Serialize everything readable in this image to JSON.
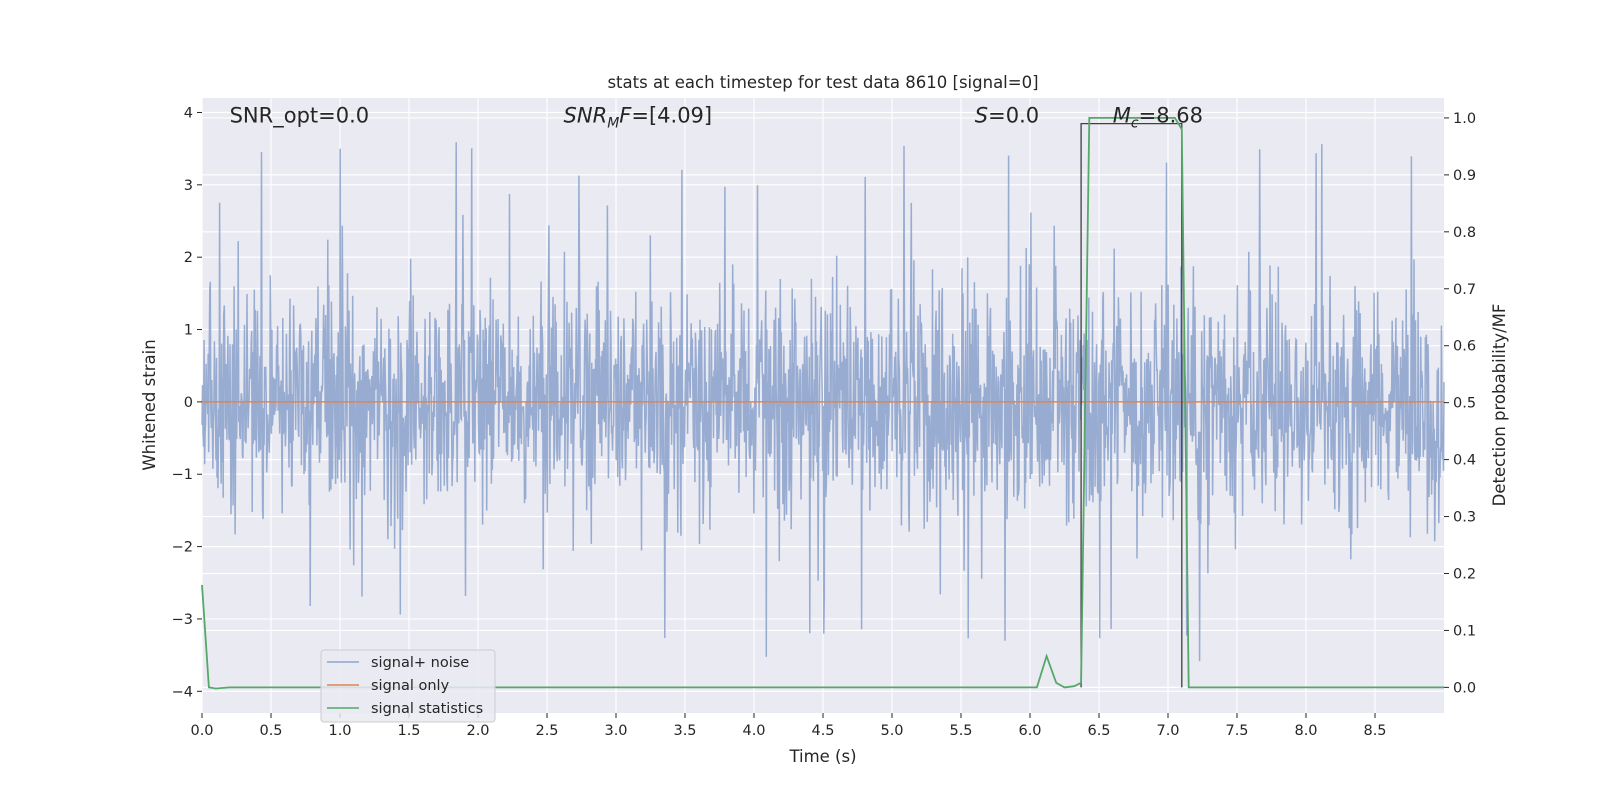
{
  "chart_data": {
    "type": "line",
    "title": "stats at each timestep for test data 8610 [signal=0]",
    "xlabel": "Time (s)",
    "ylabel_left": "Whitened strain",
    "ylabel_right": "Detection probability/MF",
    "xlim": [
      0.0,
      9.0
    ],
    "ylim_left": [
      -4.3,
      4.2
    ],
    "ylim_right": [
      -0.045,
      1.035
    ],
    "x_ticks": [
      "0.0",
      "0.5",
      "1.0",
      "1.5",
      "2.0",
      "2.5",
      "3.0",
      "3.5",
      "4.0",
      "4.5",
      "5.0",
      "5.5",
      "6.0",
      "6.5",
      "7.0",
      "7.5",
      "8.0",
      "8.5"
    ],
    "y_left_ticks": [
      "−4",
      "−3",
      "−2",
      "−1",
      "0",
      "1",
      "2",
      "3",
      "4"
    ],
    "y_right_ticks": [
      "0.0",
      "0.1",
      "0.2",
      "0.3",
      "0.4",
      "0.5",
      "0.6",
      "0.7",
      "0.8",
      "0.9",
      "1.0"
    ],
    "grid": true,
    "legend_position": "lower-left",
    "series": [
      {
        "name": "signal+ noise",
        "color": "#8fa5cd",
        "axis": "left",
        "description_values": "noise strain fluctuating roughly between -3.5 and 3.85, dense band between -1.5 and 1.5",
        "envelope": {
          "x": [
            0.0,
            9.0
          ],
          "typical_high": 1.5,
          "typical_low": -1.5,
          "peak_high": 3.85,
          "peak_low": -3.6
        }
      },
      {
        "name": "signal only",
        "color": "#dd8452",
        "axis": "left",
        "x": [
          0.0,
          9.0
        ],
        "y": [
          0.0,
          0.0
        ]
      },
      {
        "name": "signal statistics",
        "color": "#55a868",
        "axis": "right",
        "x": [
          0.0,
          0.05,
          0.1,
          0.2,
          6.05,
          6.12,
          6.19,
          6.25,
          6.32,
          6.37,
          6.43,
          7.05,
          7.1,
          7.15,
          9.0
        ],
        "y": [
          0.18,
          0.0,
          -0.002,
          0.0,
          0.0,
          0.055,
          0.008,
          0.0,
          0.002,
          0.008,
          1.0,
          1.0,
          0.98,
          0.0,
          0.0
        ]
      },
      {
        "name": "",
        "color": "#404040",
        "axis": "right",
        "x": [
          6.37,
          6.37,
          7.1,
          7.1
        ],
        "y": [
          0.0,
          0.99,
          0.99,
          0.0
        ]
      }
    ],
    "annotations": [
      {
        "text_plain": "SNR_opt=0.0",
        "x": 0.2,
        "y": 3.9
      },
      {
        "text_prefix": "SNR",
        "text_sub": "M",
        "text_suffix": "F=[4.09]",
        "x": 2.62,
        "y": 3.9
      },
      {
        "text_prefix": "S",
        "text_suffix": "=0.0",
        "x": 5.6,
        "y": 3.9
      },
      {
        "text_prefix": "M",
        "text_sub": "c",
        "text_suffix": "=8.68",
        "x": 6.6,
        "y": 3.9
      }
    ]
  },
  "legend": {
    "items": [
      {
        "label": "signal+ noise",
        "color": "#8fa5cd"
      },
      {
        "label": "signal only",
        "color": "#dd8452"
      },
      {
        "label": "signal statistics",
        "color": "#55a868"
      }
    ]
  },
  "colors": {
    "plot_background": "#eaeaf2",
    "grid": "#ffffff",
    "text": "#262626"
  }
}
